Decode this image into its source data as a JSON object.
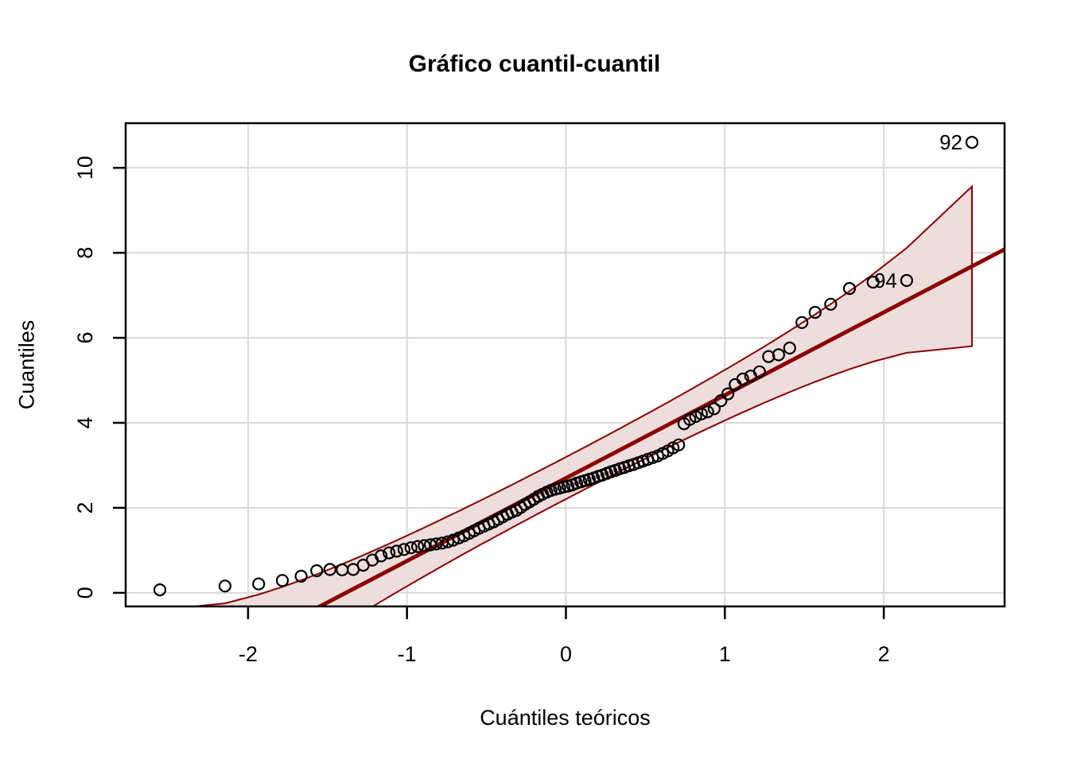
{
  "title": "Gráfico cuantil-cuantil",
  "x_axis": {
    "label": "Cuántiles teóricos",
    "tick_labels": [
      "-2",
      "-1",
      "0",
      "1",
      "2"
    ]
  },
  "y_axis": {
    "label": "Cuantiles",
    "tick_labels": [
      "0",
      "2",
      "4",
      "6",
      "8",
      "10"
    ]
  },
  "colors": {
    "background": "#ffffff",
    "frame": "#000000",
    "grid": "#d9d9d9",
    "point_stroke": "#000000",
    "line": "#8b0000",
    "band_border": "#8b0000",
    "band_fill": "#eddddc",
    "text": "#000000"
  },
  "chart_data": {
    "type": "scatter",
    "title": "Gráfico cuantil-cuantil",
    "xlabel": "Cuántiles teóricos",
    "ylabel": "Cuantiles",
    "xlim": [
      -2.77,
      2.76
    ],
    "ylim": [
      -0.32,
      11.05
    ],
    "x_ticks": [
      -2,
      -1,
      0,
      1,
      2
    ],
    "y_ticks": [
      0,
      2,
      4,
      6,
      8,
      10
    ],
    "grid": true,
    "legend": "none",
    "n": 94,
    "reference_line": {
      "intercept": 2.7,
      "slope": 1.95
    },
    "envelope": {
      "z": 1.96,
      "type": "pointwise-normal"
    },
    "points": [
      [
        -2.555,
        0.07
      ],
      [
        -2.145,
        0.16
      ],
      [
        -1.933,
        0.21
      ],
      [
        -1.784,
        0.29
      ],
      [
        -1.666,
        0.39
      ],
      [
        -1.568,
        0.52
      ],
      [
        -1.485,
        0.55
      ],
      [
        -1.408,
        0.54
      ],
      [
        -1.338,
        0.55
      ],
      [
        -1.275,
        0.65
      ],
      [
        -1.218,
        0.77
      ],
      [
        -1.163,
        0.87
      ],
      [
        -1.113,
        0.94
      ],
      [
        -1.065,
        0.98
      ],
      [
        -1.019,
        1.02
      ],
      [
        -0.975,
        1.06
      ],
      [
        -0.933,
        1.09
      ],
      [
        -0.892,
        1.11
      ],
      [
        -0.853,
        1.13
      ],
      [
        -0.816,
        1.15
      ],
      [
        -0.779,
        1.17
      ],
      [
        -0.743,
        1.2
      ],
      [
        -0.709,
        1.24
      ],
      [
        -0.674,
        1.29
      ],
      [
        -0.641,
        1.34
      ],
      [
        -0.609,
        1.4
      ],
      [
        -0.577,
        1.46
      ],
      [
        -0.546,
        1.52
      ],
      [
        -0.515,
        1.57
      ],
      [
        -0.485,
        1.62
      ],
      [
        -0.455,
        1.67
      ],
      [
        -0.426,
        1.73
      ],
      [
        -0.397,
        1.79
      ],
      [
        -0.368,
        1.85
      ],
      [
        -0.34,
        1.9
      ],
      [
        -0.312,
        1.94
      ],
      [
        -0.284,
        2.01
      ],
      [
        -0.257,
        2.08
      ],
      [
        -0.229,
        2.14
      ],
      [
        -0.202,
        2.2
      ],
      [
        -0.174,
        2.27
      ],
      [
        -0.147,
        2.32
      ],
      [
        -0.12,
        2.37
      ],
      [
        -0.094,
        2.41
      ],
      [
        -0.067,
        2.44
      ],
      [
        -0.04,
        2.46
      ],
      [
        -0.013,
        2.49
      ],
      [
        0.013,
        2.51
      ],
      [
        0.04,
        2.54
      ],
      [
        0.067,
        2.58
      ],
      [
        0.094,
        2.61
      ],
      [
        0.12,
        2.64
      ],
      [
        0.147,
        2.67
      ],
      [
        0.174,
        2.7
      ],
      [
        0.202,
        2.74
      ],
      [
        0.229,
        2.77
      ],
      [
        0.257,
        2.81
      ],
      [
        0.284,
        2.85
      ],
      [
        0.312,
        2.88
      ],
      [
        0.34,
        2.92
      ],
      [
        0.368,
        2.95
      ],
      [
        0.397,
        2.99
      ],
      [
        0.426,
        3.02
      ],
      [
        0.455,
        3.06
      ],
      [
        0.485,
        3.1
      ],
      [
        0.515,
        3.14
      ],
      [
        0.546,
        3.18
      ],
      [
        0.577,
        3.22
      ],
      [
        0.609,
        3.28
      ],
      [
        0.641,
        3.34
      ],
      [
        0.674,
        3.41
      ],
      [
        0.709,
        3.48
      ],
      [
        0.743,
        3.98
      ],
      [
        0.779,
        4.08
      ],
      [
        0.816,
        4.15
      ],
      [
        0.853,
        4.21
      ],
      [
        0.892,
        4.26
      ],
      [
        0.933,
        4.33
      ],
      [
        0.975,
        4.52
      ],
      [
        1.019,
        4.68
      ],
      [
        1.065,
        4.9
      ],
      [
        1.113,
        5.03
      ],
      [
        1.163,
        5.1
      ],
      [
        1.218,
        5.2
      ],
      [
        1.275,
        5.56
      ],
      [
        1.338,
        5.6
      ],
      [
        1.408,
        5.76
      ],
      [
        1.485,
        6.36
      ],
      [
        1.568,
        6.6
      ],
      [
        1.666,
        6.79
      ],
      [
        1.784,
        7.16
      ],
      [
        1.933,
        7.31
      ],
      [
        2.144,
        7.35
      ],
      [
        2.555,
        10.6
      ]
    ],
    "outliers": [
      {
        "text": "92",
        "x": 2.555,
        "y": 10.6
      },
      {
        "text": "94",
        "x": 2.144,
        "y": 7.35
      }
    ]
  }
}
